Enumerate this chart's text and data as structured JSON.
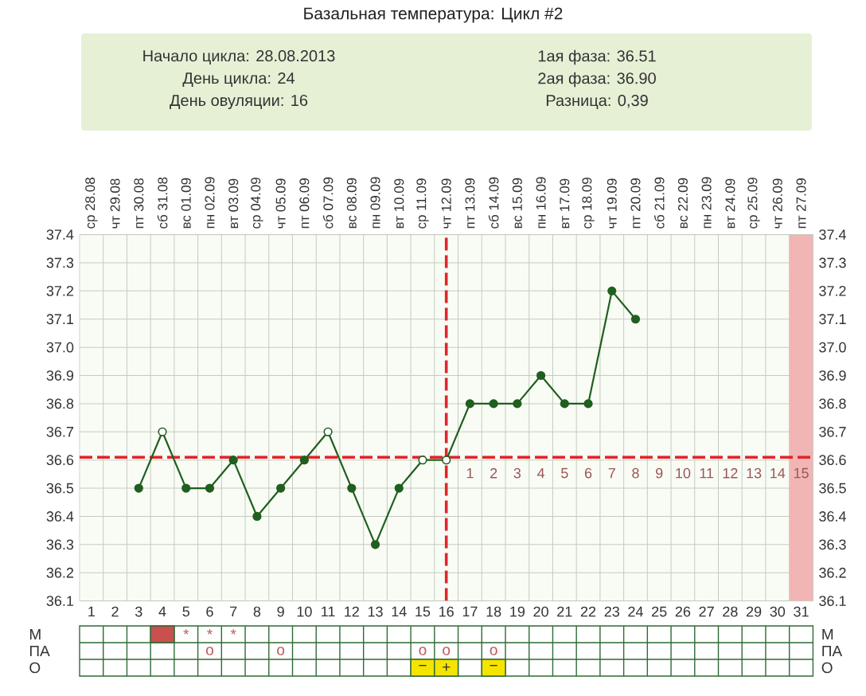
{
  "chart_data": [
    {
      "type": "line",
      "title": "Базальная температура: Цикл #2",
      "annotations": [
        "Начало цикла: 28.08.2013",
        "День цикла: 24",
        "День овуляции: 16",
        "1ая фаза: 36.51",
        "2ая фаза: 36.90",
        "Разница: 0,39",
        "1",
        "2",
        "3",
        "4",
        "5",
        "6",
        "7",
        "8",
        "9",
        "10",
        "11",
        "12",
        "13",
        "14",
        "15"
      ],
      "x": [
        3,
        4,
        5,
        6,
        7,
        8,
        9,
        10,
        11,
        12,
        13,
        14,
        15,
        16,
        17,
        18,
        19,
        20,
        21,
        22,
        23,
        24
      ],
      "values": [
        36.5,
        36.7,
        36.5,
        36.5,
        36.6,
        36.4,
        36.5,
        36.6,
        36.7,
        36.5,
        36.3,
        36.5,
        36.6,
        36.6,
        36.8,
        36.8,
        36.8,
        36.9,
        36.8,
        36.8,
        37.2,
        37.1
      ],
      "color": "#1f5f1f",
      "colors": [
        "#1f5f1f",
        "#ffffff",
        "#1f5f1f",
        "#1f5f1f",
        "#1f5f1f",
        "#1f5f1f",
        "#1f5f1f",
        "#1f5f1f",
        "#ffffff",
        "#1f5f1f",
        "#1f5f1f",
        "#1f5f1f",
        "#ffffff",
        "#ffffff",
        "#1f5f1f",
        "#1f5f1f",
        "#1f5f1f",
        "#1f5f1f",
        "#1f5f1f",
        "#1f5f1f",
        "#1f5f1f",
        "#1f5f1f"
      ],
      "xlim": [
        0.5,
        31.5
      ],
      "xticks": [
        1,
        2,
        3,
        4,
        5,
        6,
        7,
        8,
        9,
        10,
        11,
        12,
        13,
        14,
        15,
        16,
        17,
        18,
        19,
        20,
        21,
        22,
        23,
        24,
        25,
        26,
        27,
        28,
        29,
        30,
        31
      ],
      "x2lim": [
        "2013-08-27T12:00",
        "2013-09-27T12:00"
      ],
      "x2ticks": [
        {
          "value": "2013-08-28",
          "label": "ср 28.08"
        },
        {
          "value": "2013-08-29",
          "label": "чт 29.08"
        },
        {
          "value": "2013-08-30",
          "label": "пт 30.08"
        },
        {
          "value": "2013-08-31",
          "label": "сб 31.08"
        },
        {
          "value": "2013-09-01",
          "label": "вс 01.09"
        },
        {
          "value": "2013-09-02",
          "label": "пн 02.09"
        },
        {
          "value": "2013-09-03",
          "label": "вт 03.09"
        },
        {
          "value": "2013-09-04",
          "label": "ср 04.09"
        },
        {
          "value": "2013-09-05",
          "label": "чт 05.09"
        },
        {
          "value": "2013-09-06",
          "label": "пт 06.09"
        },
        {
          "value": "2013-09-07",
          "label": "сб 07.09"
        },
        {
          "value": "2013-09-08",
          "label": "вс 08.09"
        },
        {
          "value": "2013-09-09",
          "label": "пн 09.09"
        },
        {
          "value": "2013-09-10",
          "label": "вт 10.09"
        },
        {
          "value": "2013-09-11",
          "label": "ср 11.09"
        },
        {
          "value": "2013-09-12",
          "label": "чт 12.09"
        },
        {
          "value": "2013-09-13",
          "label": "пт 13.09"
        },
        {
          "value": "2013-09-14",
          "label": "сб 14.09"
        },
        {
          "value": "2013-09-15",
          "label": "вс 15.09"
        },
        {
          "value": "2013-09-16",
          "label": "пн 16.09"
        },
        {
          "value": "2013-09-17",
          "label": "вт 17.09"
        },
        {
          "value": "2013-09-18",
          "label": "ср 18.09"
        },
        {
          "value": "2013-09-19",
          "label": "чт 19.09"
        },
        {
          "value": "2013-09-20",
          "label": "пт 20.09"
        },
        {
          "value": "2013-09-21",
          "label": "сб 21.09"
        },
        {
          "value": "2013-09-22",
          "label": "вс 22.09"
        },
        {
          "value": "2013-09-23",
          "label": "пн 23.09"
        },
        {
          "value": "2013-09-24",
          "label": "вт 24.09"
        },
        {
          "value": "2013-09-25",
          "label": "ср 25.09"
        },
        {
          "value": "2013-09-26",
          "label": "чт 26.09"
        },
        {
          "value": "2013-09-27",
          "label": "пт 27.09"
        }
      ],
      "ylim": [
        36.1,
        37.4
      ],
      "yticks": [
        36.1,
        36.2,
        36.3,
        36.4,
        36.5,
        36.6,
        36.7,
        36.8,
        36.9,
        {
          "value": 37,
          "label": "37.0"
        },
        37.1,
        37.2,
        37.3,
        37.4
      ],
      "y2lim": [
        36.1,
        37.4
      ],
      "y2ticks": [
        36.1,
        36.2,
        36.3,
        36.4,
        36.5,
        36.6,
        36.7,
        36.8,
        36.9,
        {
          "value": 37,
          "label": "37.0"
        },
        37.1,
        37.2,
        37.3,
        37.4
      ],
      "ref_lines": [
        {
          "axis": "y",
          "value": 36.61,
          "color": "#e0262a",
          "line_style": "dashed"
        },
        {
          "axis": "x",
          "value": 16,
          "color": "#e0262a",
          "line_style": "dashed"
        }
      ],
      "bands": [
        {
          "axis": "x",
          "from": 30.5,
          "to": 31.5,
          "color": "#f2b5b5"
        }
      ],
      "grid": true,
      "marker": "circle",
      "line_style": "solid"
    },
    {
      "type": "other",
      "categories": [
        null,
        null,
        null,
        null,
        null,
        null,
        null,
        null,
        null,
        null,
        null,
        null,
        null,
        null,
        null,
        null,
        null,
        null,
        null,
        null,
        null,
        null,
        null,
        null,
        null,
        null,
        null,
        null,
        null,
        null,
        null
      ],
      "y_categories": [
        "М",
        "ПА",
        "О"
      ],
      "y2_categories": [
        "М",
        "ПА",
        "О"
      ],
      "cell_labels": [
        [
          null,
          null,
          null,
          null,
          "*",
          "*",
          "*",
          null,
          null,
          null,
          null,
          null,
          null,
          null,
          null,
          null,
          null,
          null,
          null,
          null,
          null,
          null,
          null,
          null,
          null,
          null,
          null,
          null,
          null,
          null,
          null
        ],
        [
          null,
          null,
          null,
          null,
          null,
          "o",
          null,
          null,
          "o",
          null,
          null,
          null,
          null,
          null,
          "o",
          "o",
          null,
          "o",
          null,
          null,
          null,
          null,
          null,
          null,
          null,
          null,
          null,
          null,
          null,
          null,
          null
        ],
        [
          null,
          null,
          null,
          null,
          null,
          null,
          null,
          null,
          null,
          null,
          null,
          null,
          null,
          null,
          "−",
          "+",
          null,
          "−",
          null,
          null,
          null,
          null,
          null,
          null,
          null,
          null,
          null,
          null,
          null,
          null,
          null
        ]
      ],
      "colors": [
        [
          null,
          null,
          null,
          "#c9504f",
          null,
          null,
          null,
          null,
          null,
          null,
          null,
          null,
          null,
          null,
          null,
          null,
          null,
          null,
          null,
          null,
          null,
          null,
          null,
          null,
          null,
          null,
          null,
          null,
          null,
          null,
          null
        ],
        [
          null,
          null,
          null,
          null,
          null,
          null,
          null,
          null,
          null,
          null,
          null,
          null,
          null,
          null,
          null,
          null,
          null,
          null,
          null,
          null,
          null,
          null,
          null,
          null,
          null,
          null,
          null,
          null,
          null,
          null,
          null
        ],
        [
          null,
          null,
          null,
          null,
          null,
          null,
          null,
          null,
          null,
          null,
          null,
          null,
          null,
          null,
          "#f5e400",
          "#f5e400",
          null,
          "#f5e400",
          null,
          null,
          null,
          null,
          null,
          null,
          null,
          null,
          null,
          null,
          null,
          null,
          null
        ]
      ]
    }
  ]
}
